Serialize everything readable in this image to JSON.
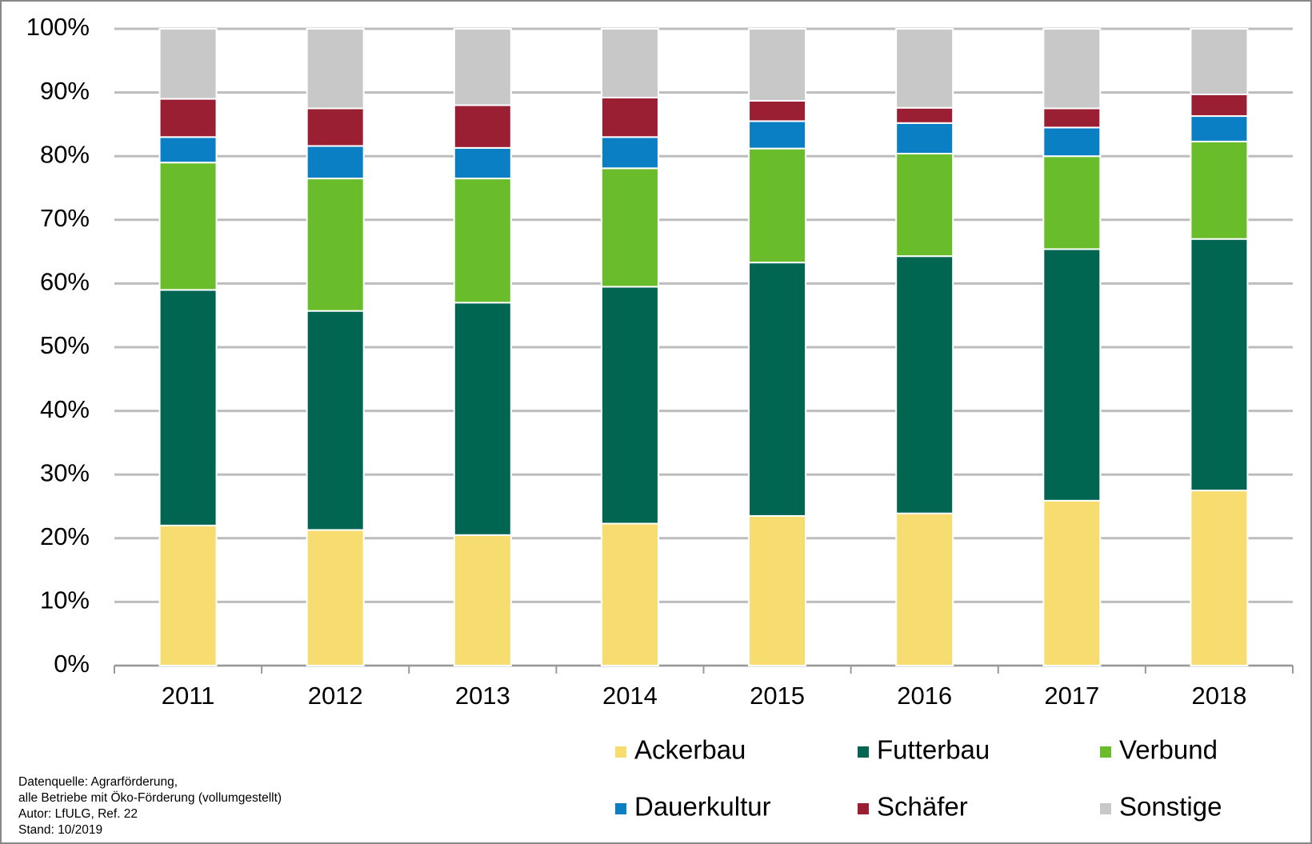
{
  "chart_data": {
    "type": "stacked_bar",
    "categories": [
      "2011",
      "2012",
      "2013",
      "2014",
      "2015",
      "2016",
      "2017",
      "2018"
    ],
    "series": [
      {
        "name": "Ackerbau",
        "color": "#f7dc6f",
        "values": [
          22,
          21.3,
          20.5,
          22.3,
          23.5,
          23.9,
          25.9,
          27.5
        ]
      },
      {
        "name": "Futterbau",
        "color": "#006651",
        "values": [
          37,
          34.4,
          36.5,
          37.2,
          39.8,
          40.4,
          39.5,
          39.5
        ]
      },
      {
        "name": "Verbund",
        "color": "#6abd2a",
        "values": [
          20,
          20.8,
          19.5,
          18.6,
          17.9,
          16.1,
          14.6,
          15.3
        ]
      },
      {
        "name": "Dauerkultur",
        "color": "#0a7fc4",
        "values": [
          4,
          5.1,
          4.8,
          4.9,
          4.3,
          4.8,
          4.5,
          4.0
        ]
      },
      {
        "name": "Schäfer",
        "color": "#9b1f32",
        "values": [
          6,
          5.9,
          6.7,
          6.2,
          3.2,
          2.4,
          3.0,
          3.4
        ]
      },
      {
        "name": "Sonstige",
        "color": "#c8c8c8",
        "values": [
          11,
          12.5,
          12.0,
          10.8,
          11.3,
          12.4,
          12.5,
          10.3
        ]
      }
    ],
    "ylim": [
      0,
      100
    ],
    "yticks": [
      {
        "value": 0,
        "label": "0%"
      },
      {
        "value": 10,
        "label": "10%"
      },
      {
        "value": 20,
        "label": "20%"
      },
      {
        "value": 30,
        "label": "30%"
      },
      {
        "value": 40,
        "label": "40%"
      },
      {
        "value": 50,
        "label": "50%"
      },
      {
        "value": 60,
        "label": "60%"
      },
      {
        "value": 70,
        "label": "70%"
      },
      {
        "value": 80,
        "label": "80%"
      },
      {
        "value": 90,
        "label": "90%"
      },
      {
        "value": 100,
        "label": "100%"
      }
    ],
    "grid": true,
    "notes": [
      "Datenquelle:  Agrarförderung,",
      "alle Betriebe mit Öko-Förderung  (vollumgestellt)",
      "Autor: LfULG,  Ref. 22",
      "Stand:  10/2019"
    ]
  }
}
